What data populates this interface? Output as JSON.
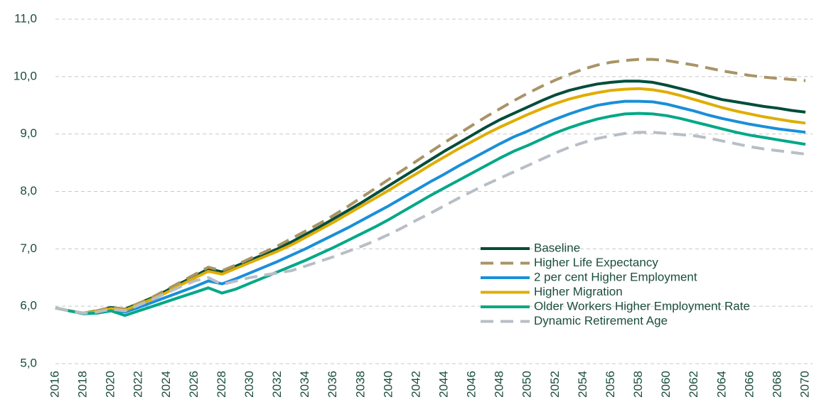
{
  "chart_data": {
    "type": "line",
    "x": [
      2016,
      2017,
      2018,
      2019,
      2020,
      2021,
      2022,
      2023,
      2024,
      2025,
      2026,
      2027,
      2028,
      2029,
      2030,
      2031,
      2032,
      2033,
      2034,
      2035,
      2036,
      2037,
      2038,
      2039,
      2040,
      2041,
      2042,
      2043,
      2044,
      2045,
      2046,
      2047,
      2048,
      2049,
      2050,
      2051,
      2052,
      2053,
      2054,
      2055,
      2056,
      2057,
      2058,
      2059,
      2060,
      2061,
      2062,
      2063,
      2064,
      2065,
      2066,
      2067,
      2068,
      2069,
      2070
    ],
    "xlim": [
      2016,
      2070
    ],
    "xticks": [
      2016,
      2018,
      2020,
      2022,
      2024,
      2026,
      2028,
      2030,
      2032,
      2034,
      2036,
      2038,
      2040,
      2042,
      2044,
      2046,
      2048,
      2050,
      2052,
      2054,
      2056,
      2058,
      2060,
      2062,
      2064,
      2066,
      2068,
      2070
    ],
    "ylim": [
      5,
      11
    ],
    "yticks": [
      {
        "value": 5,
        "label": "5,0"
      },
      {
        "value": 6,
        "label": "6,0"
      },
      {
        "value": 7,
        "label": "7,0"
      },
      {
        "value": 8,
        "label": "8,0"
      },
      {
        "value": 9,
        "label": "9,0"
      },
      {
        "value": 10,
        "label": "10,0"
      },
      {
        "value": 11,
        "label": "11,0"
      }
    ],
    "grid": true,
    "legend": "lower right",
    "series": [
      {
        "name": "Baseline",
        "color": "#004d3a",
        "line_style": "solid",
        "values": [
          5.97,
          5.92,
          5.88,
          5.92,
          5.98,
          5.95,
          6.05,
          6.15,
          6.27,
          6.4,
          6.52,
          6.65,
          6.6,
          6.7,
          6.8,
          6.9,
          7.0,
          7.12,
          7.25,
          7.38,
          7.52,
          7.66,
          7.8,
          7.95,
          8.1,
          8.25,
          8.4,
          8.55,
          8.7,
          8.84,
          8.98,
          9.12,
          9.25,
          9.36,
          9.47,
          9.58,
          9.68,
          9.76,
          9.82,
          9.87,
          9.9,
          9.92,
          9.92,
          9.9,
          9.85,
          9.79,
          9.73,
          9.66,
          9.6,
          9.56,
          9.52,
          9.48,
          9.45,
          9.41,
          9.38
        ]
      },
      {
        "name": "Higher Life Expectancy",
        "color": "#a89466",
        "line_style": "dashed",
        "values": [
          5.97,
          5.92,
          5.88,
          5.92,
          5.98,
          5.95,
          6.05,
          6.16,
          6.29,
          6.42,
          6.55,
          6.68,
          6.62,
          6.72,
          6.83,
          6.94,
          7.05,
          7.18,
          7.31,
          7.44,
          7.58,
          7.73,
          7.89,
          8.05,
          8.21,
          8.37,
          8.53,
          8.69,
          8.85,
          9.0,
          9.15,
          9.3,
          9.44,
          9.58,
          9.71,
          9.83,
          9.94,
          10.04,
          10.13,
          10.2,
          10.25,
          10.28,
          10.3,
          10.3,
          10.28,
          10.24,
          10.2,
          10.15,
          10.1,
          10.06,
          10.02,
          9.99,
          9.97,
          9.95,
          9.93
        ]
      },
      {
        "name": "2 per cent Higher Employment",
        "color": "#1a8fd8",
        "line_style": "solid",
        "values": [
          5.97,
          5.92,
          5.88,
          5.9,
          5.94,
          5.9,
          5.98,
          6.07,
          6.16,
          6.25,
          6.34,
          6.44,
          6.39,
          6.48,
          6.58,
          6.68,
          6.78,
          6.89,
          7.0,
          7.12,
          7.24,
          7.36,
          7.49,
          7.62,
          7.75,
          7.89,
          8.03,
          8.17,
          8.3,
          8.44,
          8.57,
          8.7,
          8.83,
          8.95,
          9.05,
          9.16,
          9.26,
          9.35,
          9.43,
          9.5,
          9.54,
          9.57,
          9.57,
          9.56,
          9.52,
          9.46,
          9.4,
          9.33,
          9.27,
          9.22,
          9.17,
          9.13,
          9.09,
          9.06,
          9.03
        ]
      },
      {
        "name": "Higher Migration",
        "color": "#e0ad00",
        "line_style": "solid",
        "values": [
          5.97,
          5.92,
          5.88,
          5.91,
          5.96,
          5.93,
          6.03,
          6.13,
          6.24,
          6.37,
          6.49,
          6.61,
          6.56,
          6.66,
          6.76,
          6.86,
          6.96,
          7.07,
          7.2,
          7.33,
          7.46,
          7.6,
          7.74,
          7.88,
          8.02,
          8.17,
          8.31,
          8.46,
          8.6,
          8.74,
          8.87,
          9.0,
          9.12,
          9.23,
          9.34,
          9.44,
          9.53,
          9.61,
          9.67,
          9.72,
          9.76,
          9.78,
          9.79,
          9.77,
          9.73,
          9.67,
          9.6,
          9.53,
          9.46,
          9.4,
          9.35,
          9.3,
          9.26,
          9.22,
          9.19
        ]
      },
      {
        "name": "Older Workers Higher Employment Rate",
        "color": "#00a887",
        "line_style": "solid",
        "values": [
          5.97,
          5.92,
          5.87,
          5.88,
          5.92,
          5.84,
          5.92,
          6.0,
          6.08,
          6.16,
          6.24,
          6.32,
          6.23,
          6.3,
          6.4,
          6.5,
          6.6,
          6.7,
          6.8,
          6.91,
          7.02,
          7.14,
          7.26,
          7.38,
          7.51,
          7.65,
          7.79,
          7.93,
          8.06,
          8.19,
          8.32,
          8.45,
          8.58,
          8.7,
          8.8,
          8.91,
          9.02,
          9.11,
          9.19,
          9.26,
          9.31,
          9.35,
          9.36,
          9.35,
          9.32,
          9.27,
          9.21,
          9.15,
          9.09,
          9.03,
          8.98,
          8.94,
          8.9,
          8.86,
          8.82
        ]
      },
      {
        "name": "Dynamic Retirement Age",
        "color": "#b8bec6",
        "line_style": "dashed",
        "values": [
          5.97,
          5.92,
          5.88,
          5.9,
          5.95,
          5.92,
          6.02,
          6.12,
          6.23,
          6.34,
          6.44,
          6.5,
          6.38,
          6.44,
          6.5,
          6.54,
          6.58,
          6.62,
          6.7,
          6.78,
          6.86,
          6.95,
          7.04,
          7.14,
          7.25,
          7.37,
          7.5,
          7.62,
          7.75,
          7.88,
          8.0,
          8.12,
          8.23,
          8.34,
          8.45,
          8.56,
          8.67,
          8.77,
          8.85,
          8.92,
          8.97,
          9.01,
          9.03,
          9.03,
          9.01,
          8.99,
          8.97,
          8.93,
          8.88,
          8.83,
          8.78,
          8.74,
          8.71,
          8.68,
          8.65
        ]
      }
    ]
  }
}
